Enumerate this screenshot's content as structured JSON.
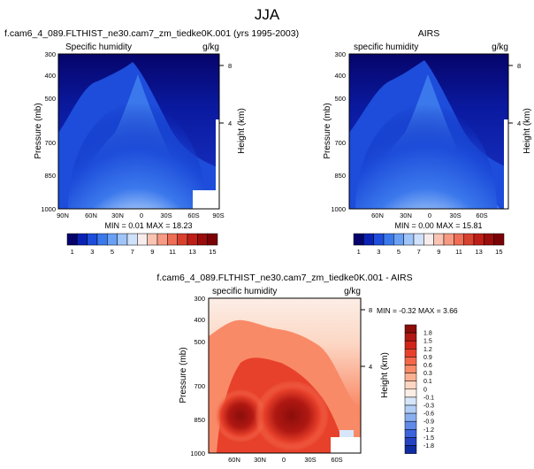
{
  "figure": {
    "title": "JJA"
  },
  "panels": {
    "model": {
      "left_title": "f.cam6_4_089.FLTHIST_ne30.cam7_zm_tiedke0K.001 (yrs 1995-2003)",
      "subtitle": "Specific humidity",
      "units": "g/kg",
      "ylabel": "Pressure (mb)",
      "right_label": "Height (km)",
      "stats": "MIN =  0.01  MAX =  18.23"
    },
    "obs": {
      "center_title": "AIRS",
      "subtitle": "specific humidity",
      "units": "g/kg",
      "ylabel": "Pressure (mb)",
      "right_label": "Height (km)",
      "stats": "MIN =  0.00  MAX =  15.81"
    },
    "diff": {
      "center_title": "f.cam6_4_089.FLTHIST_ne30.cam7_zm_tiedke0K.001 - AIRS",
      "subtitle": "specific humidity",
      "units": "g/kg",
      "ylabel": "Pressure (mb)",
      "right_label": "Height (km)",
      "stats": "MIN = -0.32  MAX =  3.66"
    }
  },
  "chart_data": [
    {
      "type": "heatmap",
      "name": "model",
      "title": "Specific humidity",
      "xlabel": "",
      "ylabel": "Pressure (mb)",
      "xlim": [
        90,
        -90
      ],
      "ylim": [
        1000,
        300
      ],
      "x_ticks": [
        "90N",
        "60N",
        "30N",
        "0",
        "30S",
        "60S",
        "90S"
      ],
      "y_ticks": [
        "300",
        "400",
        "500",
        "700",
        "850",
        "1000"
      ],
      "right_ticks": [
        "8",
        "4"
      ],
      "min": 0.01,
      "max": 18.23
    },
    {
      "type": "heatmap",
      "name": "obs",
      "title": "specific humidity",
      "xlabel": "",
      "ylabel": "Pressure (mb)",
      "xlim": [
        90,
        -90
      ],
      "ylim": [
        1000,
        300
      ],
      "x_ticks": [
        "60N",
        "30N",
        "0",
        "30S",
        "60S"
      ],
      "y_ticks": [
        "300",
        "400",
        "500",
        "700",
        "850",
        "1000"
      ],
      "right_ticks": [
        "8",
        "4"
      ],
      "min": 0.0,
      "max": 15.81
    },
    {
      "type": "heatmap",
      "name": "diff",
      "title": "specific humidity",
      "xlabel": "",
      "ylabel": "Pressure (mb)",
      "xlim": [
        90,
        -90
      ],
      "ylim": [
        1000,
        300
      ],
      "x_ticks": [
        "60N",
        "30N",
        "0",
        "30S",
        "60S"
      ],
      "y_ticks": [
        "300",
        "400",
        "500",
        "700",
        "850",
        "1000"
      ],
      "right_ticks": [
        "8",
        "4"
      ],
      "min": -0.32,
      "max": 3.66
    }
  ],
  "colorbars": {
    "main": {
      "labels": [
        "1",
        "3",
        "5",
        "7",
        "9",
        "11",
        "13",
        "15"
      ],
      "colors": [
        "#06046a",
        "#0a22b4",
        "#1d4dda",
        "#3b78ec",
        "#6aa0f3",
        "#9fc4f8",
        "#d0e1fb",
        "#f8ecec",
        "#fbc3b2",
        "#f79a83",
        "#ee6e56",
        "#d9412f",
        "#bd1f17",
        "#9a0d0c",
        "#7a0205"
      ]
    },
    "diff": {
      "labels": [
        "1.8",
        "1.5",
        "1.2",
        "0.9",
        "0.6",
        "0.3",
        "0.1",
        "0",
        "-0.1",
        "-0.3",
        "-0.6",
        "-0.9",
        "-1.2",
        "-1.5",
        "-1.8"
      ],
      "colors": [
        "#8b0d0a",
        "#b01812",
        "#d0261a",
        "#e8412b",
        "#f46748",
        "#f98a67",
        "#fbb092",
        "#fcd6c3",
        "#fceee6",
        "#d7e6fa",
        "#b3cef5",
        "#8aaff0",
        "#5f8ae8",
        "#3b63dc",
        "#2442c2",
        "#102ca1"
      ]
    }
  }
}
